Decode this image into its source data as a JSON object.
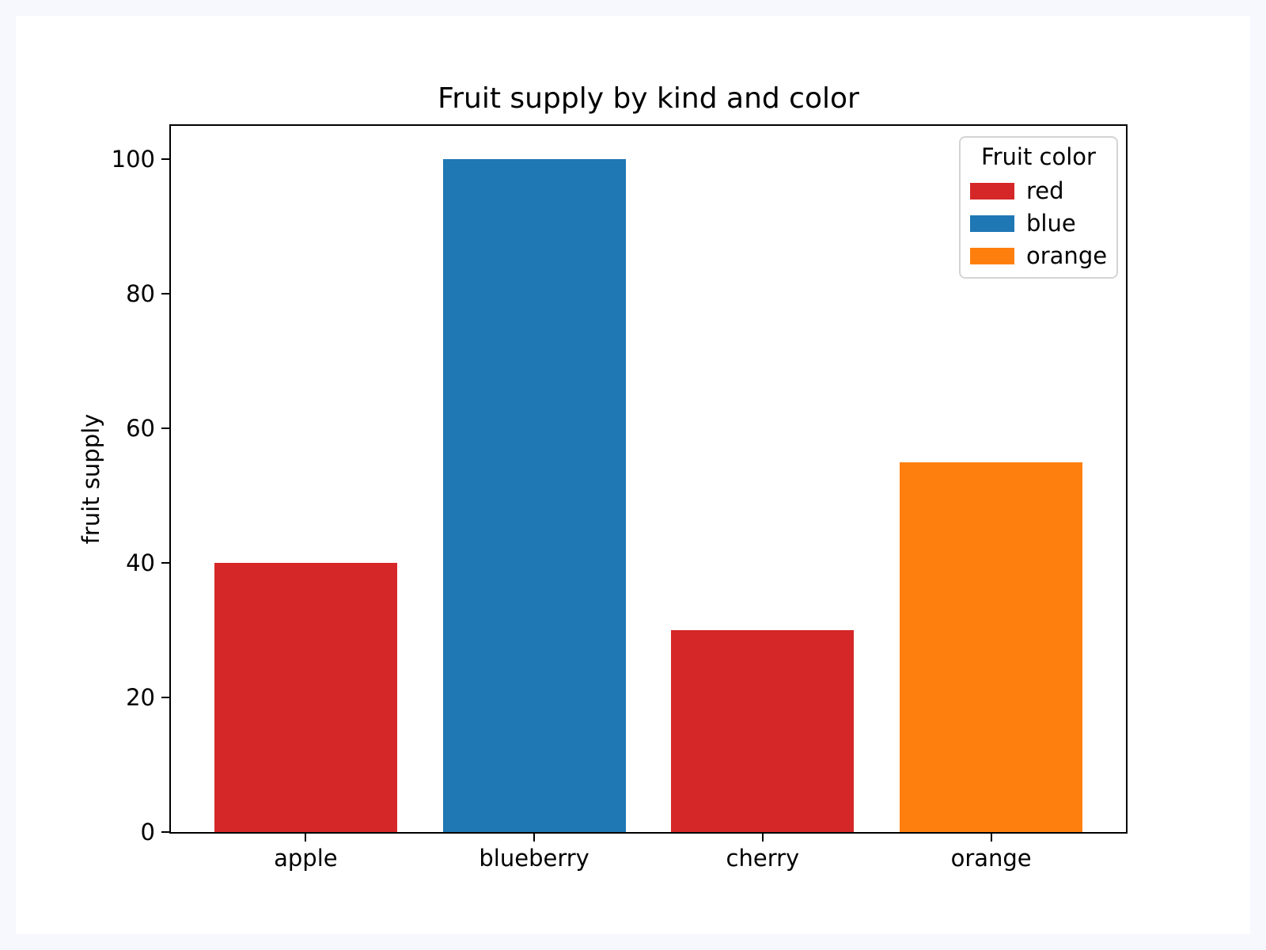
{
  "page": {
    "background": "#f6f8fd",
    "paper_background": "#ffffff"
  },
  "chart_data": {
    "type": "bar",
    "title": "Fruit supply by kind and color",
    "xlabel": "",
    "ylabel": "fruit supply",
    "categories": [
      "apple",
      "blueberry",
      "cherry",
      "orange"
    ],
    "values": [
      40,
      100,
      30,
      55
    ],
    "bar_colors": [
      "#d62728",
      "#1f77b4",
      "#d62728",
      "#ff7f0e"
    ],
    "ylim": [
      0,
      105
    ],
    "yticks": [
      0,
      20,
      40,
      60,
      80,
      100
    ],
    "bar_width_fraction": 0.8,
    "x_margin_fraction": 0.05,
    "grid": false,
    "axis_color": "#000000",
    "legend": {
      "title": "Fruit color",
      "position": "upper-right",
      "entries": [
        {
          "label": "red",
          "color": "#d62728"
        },
        {
          "label": "blue",
          "color": "#1f77b4"
        },
        {
          "label": "orange",
          "color": "#ff7f0e"
        }
      ]
    }
  }
}
